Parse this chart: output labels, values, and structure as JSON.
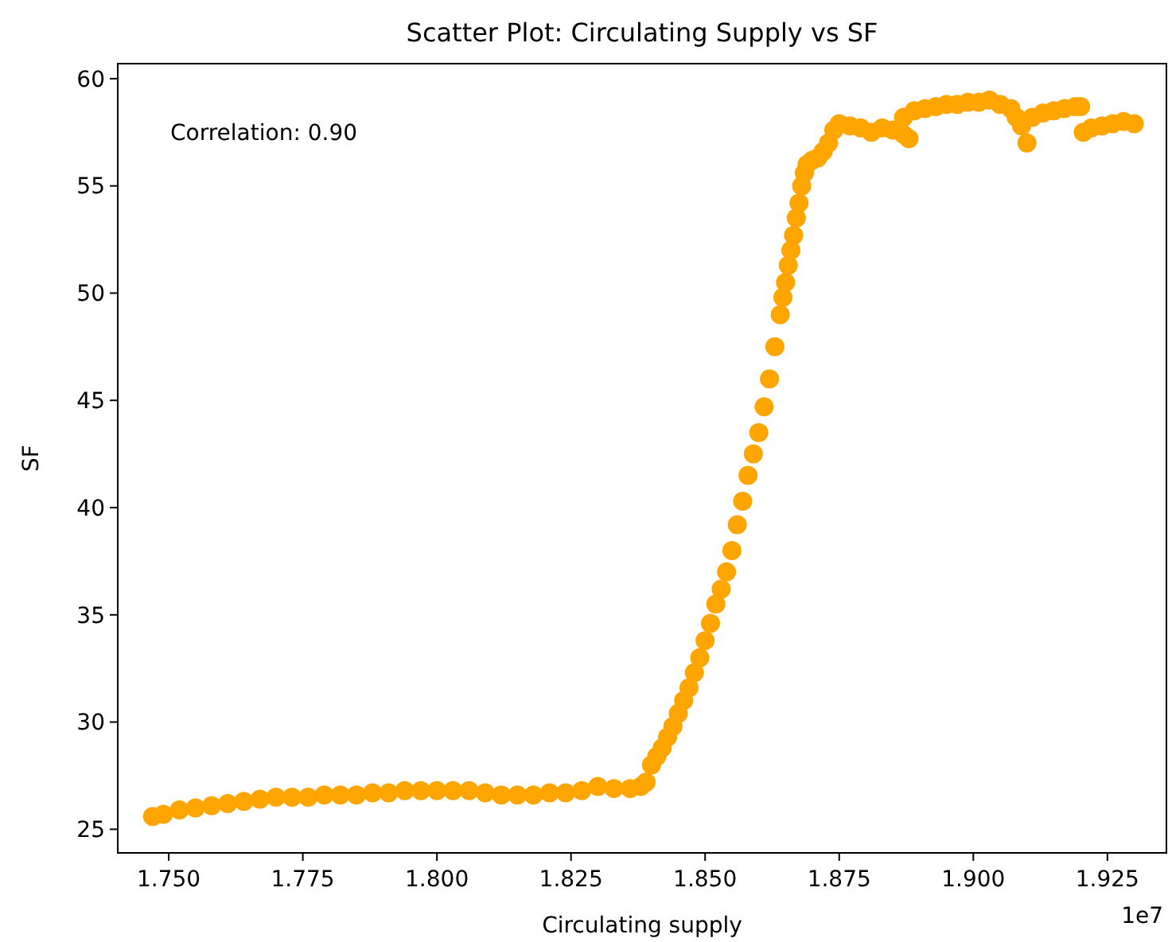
{
  "chart_data": {
    "type": "scatter",
    "title": "Scatter Plot: Circulating Supply vs SF",
    "xlabel": "Circulating supply",
    "ylabel": "SF",
    "annotations": [
      "Correlation: 0.90",
      "1e7"
    ],
    "marker": "circle",
    "grid": false,
    "xlim": [
      1.7405,
      1.936
    ],
    "ylim": [
      23.9,
      60.7
    ],
    "xticks": [
      {
        "value": 1.75,
        "label": "1.750"
      },
      {
        "value": 1.775,
        "label": "1.775"
      },
      {
        "value": 1.8,
        "label": "1.800"
      },
      {
        "value": 1.825,
        "label": "1.825"
      },
      {
        "value": 1.85,
        "label": "1.850"
      },
      {
        "value": 1.875,
        "label": "1.875"
      },
      {
        "value": 1.9,
        "label": "1.900"
      },
      {
        "value": 1.925,
        "label": "1.925"
      }
    ],
    "yticks": [
      25,
      30,
      35,
      40,
      45,
      50,
      55,
      60
    ],
    "series": [
      {
        "color": "#ffa500",
        "x": [
          1.747,
          1.749,
          1.752,
          1.755,
          1.758,
          1.761,
          1.764,
          1.767,
          1.77,
          1.773,
          1.776,
          1.779,
          1.782,
          1.785,
          1.788,
          1.791,
          1.794,
          1.797,
          1.8,
          1.803,
          1.806,
          1.809,
          1.812,
          1.815,
          1.818,
          1.821,
          1.824,
          1.827,
          1.83,
          1.833,
          1.836,
          1.838,
          1.839,
          1.84,
          1.841,
          1.842,
          1.843,
          1.844,
          1.845,
          1.846,
          1.847,
          1.848,
          1.849,
          1.85,
          1.851,
          1.852,
          1.853,
          1.854,
          1.855,
          1.856,
          1.857,
          1.858,
          1.859,
          1.86,
          1.861,
          1.862,
          1.863,
          1.864,
          1.8645,
          1.865,
          1.8655,
          1.866,
          1.8665,
          1.867,
          1.8675,
          1.868,
          1.8685,
          1.869,
          1.87,
          1.871,
          1.872,
          1.873,
          1.874,
          1.875,
          1.877,
          1.879,
          1.881,
          1.883,
          1.885,
          1.887,
          1.888,
          1.887,
          1.889,
          1.891,
          1.893,
          1.895,
          1.897,
          1.899,
          1.901,
          1.903,
          1.905,
          1.907,
          1.908,
          1.909,
          1.91,
          1.911,
          1.913,
          1.915,
          1.917,
          1.919,
          1.92,
          1.9205,
          1.922,
          1.924,
          1.926,
          1.928,
          1.93
        ],
        "values": [
          25.6,
          25.7,
          25.9,
          26.0,
          26.1,
          26.2,
          26.3,
          26.4,
          26.5,
          26.5,
          26.5,
          26.6,
          26.6,
          26.6,
          26.7,
          26.7,
          26.8,
          26.8,
          26.8,
          26.8,
          26.8,
          26.7,
          26.6,
          26.6,
          26.6,
          26.7,
          26.7,
          26.8,
          27.0,
          26.9,
          26.9,
          27.0,
          27.2,
          28.0,
          28.4,
          28.8,
          29.3,
          29.8,
          30.4,
          31.0,
          31.6,
          32.3,
          33.0,
          33.8,
          34.6,
          35.5,
          36.2,
          37.0,
          38.0,
          39.2,
          40.3,
          41.5,
          42.5,
          43.5,
          44.7,
          46.0,
          47.5,
          49.0,
          49.8,
          50.5,
          51.3,
          52.0,
          52.7,
          53.5,
          54.2,
          55.0,
          55.6,
          56.0,
          56.2,
          56.3,
          56.6,
          57.0,
          57.6,
          57.9,
          57.8,
          57.7,
          57.5,
          57.7,
          57.6,
          57.4,
          57.2,
          58.2,
          58.5,
          58.6,
          58.7,
          58.8,
          58.8,
          58.9,
          58.9,
          59.0,
          58.8,
          58.6,
          58.2,
          57.8,
          57.0,
          58.2,
          58.4,
          58.5,
          58.6,
          58.7,
          58.7,
          57.5,
          57.7,
          57.8,
          57.9,
          58.0,
          57.9
        ]
      }
    ]
  }
}
